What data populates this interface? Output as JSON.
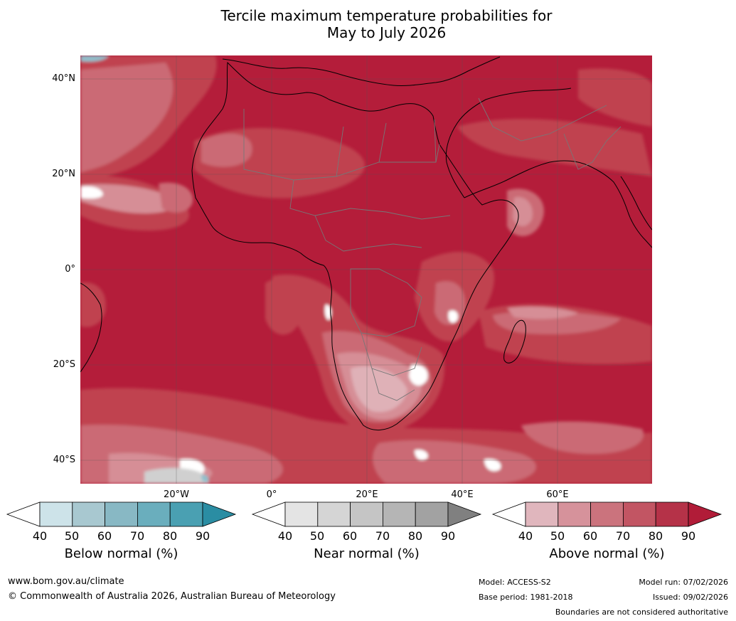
{
  "title": {
    "line1": "Tercile maximum temperature probabilities for",
    "line2": "May to July 2026"
  },
  "map": {
    "lat_labels": [
      "40°N",
      "20°N",
      "0°",
      "20°S",
      "40°S"
    ],
    "lon_labels": [
      "20°W",
      "0°",
      "20°E",
      "40°E",
      "60°E"
    ],
    "colors": {
      "ocean_base": "#b41d3a",
      "land_base": "#b41d3a",
      "band80": "#c0434f",
      "band70": "#cb6b75",
      "band60": "#d68e96",
      "band50": "#dfb1b7",
      "white": "#ffffff",
      "blue": "#8fbfcc",
      "grey": "#d0d0d0",
      "coast": "#000000",
      "border": "#777777"
    }
  },
  "legends": [
    {
      "caption": "Below normal (%)",
      "ticks": [
        "40",
        "50",
        "60",
        "70",
        "80",
        "90"
      ],
      "colors": [
        "#ffffff",
        "#cde3e9",
        "#a8c8d0",
        "#88b8c4",
        "#6aaebd",
        "#4aa0b2",
        "#2a8da3"
      ]
    },
    {
      "caption": "Near normal (%)",
      "ticks": [
        "40",
        "50",
        "60",
        "70",
        "80",
        "90"
      ],
      "colors": [
        "#ffffff",
        "#e4e4e4",
        "#d5d5d5",
        "#c5c5c5",
        "#b5b5b5",
        "#a2a2a2",
        "#808080"
      ]
    },
    {
      "caption": "Above normal (%)",
      "ticks": [
        "40",
        "50",
        "60",
        "70",
        "80",
        "90"
      ],
      "colors": [
        "#ffffff",
        "#e0b6bd",
        "#d6929b",
        "#cb737d",
        "#c25563",
        "#b53248",
        "#b11c38"
      ]
    }
  ],
  "footer": {
    "website": "www.bom.gov.au/climate",
    "copyright": "© Commonwealth of Australia 2026, Australian Bureau of Meteorology",
    "model": "Model: ACCESS-S2",
    "base_period": "Base period: 1981-2018",
    "model_run": "Model run: 07/02/2026",
    "issued": "Issued: 09/02/2026",
    "disclaimer": "Boundaries are not considered authoritative"
  }
}
